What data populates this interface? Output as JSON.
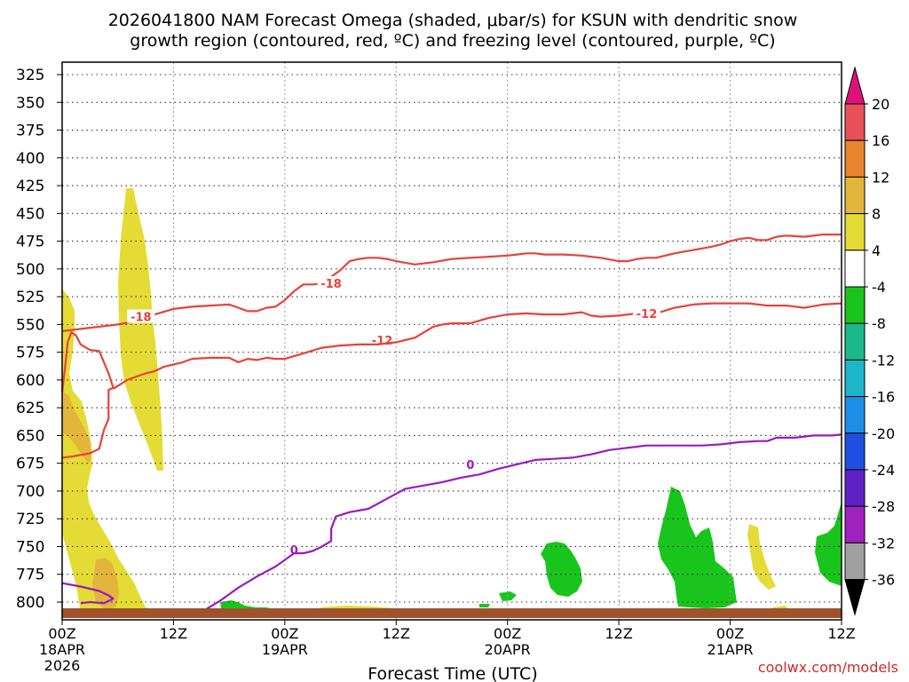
{
  "chart_data": {
    "type": "time-height cross-section",
    "title_line1": "2026041800 NAM Forecast Omega (shaded, μbar/s) for KSUN with dendritic snow",
    "title_line2": "growth region (contoured, red, ºC) and freezing level (contoured, purple, ºC)",
    "xlabel": "Forecast Time (UTC)",
    "watermark": "coolwx.com/models",
    "x_unit": "forecast hours",
    "xlim": [
      0,
      84
    ],
    "y_unit": "hPa",
    "ylim": [
      315,
      812
    ],
    "y_ticks": [
      325,
      350,
      375,
      400,
      425,
      450,
      475,
      500,
      525,
      550,
      575,
      600,
      625,
      650,
      675,
      700,
      725,
      750,
      775,
      800
    ],
    "x_ticks": [
      {
        "hour": 0,
        "label": "00Z",
        "date": "18APR",
        "year": "2026"
      },
      {
        "hour": 12,
        "label": "12Z",
        "date": "",
        "year": ""
      },
      {
        "hour": 24,
        "label": "00Z",
        "date": "19APR",
        "year": ""
      },
      {
        "hour": 36,
        "label": "12Z",
        "date": "",
        "year": ""
      },
      {
        "hour": 48,
        "label": "00Z",
        "date": "20APR",
        "year": ""
      },
      {
        "hour": 60,
        "label": "12Z",
        "date": "",
        "year": ""
      },
      {
        "hour": 72,
        "label": "00Z",
        "date": "21APR",
        "year": ""
      },
      {
        "hour": 84,
        "label": "12Z",
        "date": "",
        "year": ""
      }
    ],
    "ground_surface_hpa": 808,
    "colorbar": {
      "labels": [
        "20",
        "16",
        "12",
        "8",
        "4",
        "-4",
        "-8",
        "-12",
        "-16",
        "-20",
        "-24",
        "-28",
        "-32",
        "-36"
      ],
      "colors": [
        "#e8505a",
        "#e9842e",
        "#e4b53b",
        "#e4dc35",
        "#ffffff",
        "#19c51c",
        "#19b98a",
        "#1cb5c9",
        "#1e8fe9",
        "#1f4fe0",
        "#6020c8",
        "#a020c0",
        "#a0a0a0"
      ],
      "top_arrow_color": "#e0107a",
      "bottom_arrow_color": "#000000"
    },
    "series": [
      {
        "name": "-18 C isotherm (lower)",
        "color": "#e8413a",
        "label": "-18",
        "label_at": [
          8.5,
          543
        ],
        "points": [
          [
            0,
            556
          ],
          [
            2,
            554
          ],
          [
            4,
            552
          ],
          [
            6,
            550
          ],
          [
            8,
            547
          ],
          [
            10,
            541
          ],
          [
            12,
            536
          ],
          [
            14,
            534
          ],
          [
            16,
            533
          ],
          [
            18,
            532
          ],
          [
            19,
            535
          ],
          [
            20,
            538
          ],
          [
            21,
            538
          ],
          [
            22,
            535
          ],
          [
            23,
            534
          ],
          [
            24,
            528
          ],
          [
            25,
            520
          ],
          [
            26,
            514
          ],
          [
            27,
            514
          ],
          [
            28,
            513
          ],
          [
            29,
            507
          ],
          [
            30,
            501
          ],
          [
            31,
            493
          ],
          [
            32,
            491
          ],
          [
            33,
            490
          ],
          [
            34,
            490
          ],
          [
            35,
            491
          ],
          [
            36,
            493
          ],
          [
            38,
            496
          ],
          [
            40,
            494
          ],
          [
            42,
            491
          ],
          [
            44,
            490
          ],
          [
            46,
            489
          ],
          [
            48,
            488
          ],
          [
            49,
            487
          ],
          [
            50,
            486
          ],
          [
            51,
            486
          ],
          [
            52,
            487
          ],
          [
            54,
            487
          ],
          [
            56,
            488
          ],
          [
            58,
            490
          ],
          [
            60,
            493
          ],
          [
            61,
            493
          ],
          [
            62,
            491
          ],
          [
            63,
            490
          ],
          [
            64,
            490
          ],
          [
            66,
            486
          ],
          [
            68,
            483
          ],
          [
            70,
            480
          ],
          [
            71,
            478
          ],
          [
            72,
            475
          ],
          [
            73,
            473
          ],
          [
            74,
            472
          ],
          [
            75,
            474
          ],
          [
            76,
            474
          ],
          [
            77,
            471
          ],
          [
            78,
            470
          ],
          [
            80,
            471
          ],
          [
            82,
            469
          ],
          [
            84,
            469
          ]
        ]
      },
      {
        "name": "-18 C isotherm (upper, freezing-level side)",
        "color": "#e8413a",
        "label": "-18",
        "label_at": [
          29,
          513
        ],
        "points": []
      },
      {
        "name": "-12 C isotherm",
        "color": "#e8413a",
        "label": "-12",
        "label_at": [
          34.5,
          564
        ],
        "points": [
          [
            0,
            611
          ],
          [
            0.3,
            590
          ],
          [
            0.6,
            566
          ],
          [
            1,
            557
          ],
          [
            1.5,
            560
          ],
          [
            2,
            568
          ],
          [
            3,
            573
          ],
          [
            4,
            574
          ],
          [
            5,
            594
          ],
          [
            5.5,
            607
          ],
          [
            5,
            609
          ],
          [
            5,
            615
          ],
          [
            5,
            625
          ],
          [
            5,
            635
          ],
          [
            4.5,
            645
          ],
          [
            4,
            662
          ],
          [
            3,
            666
          ],
          [
            1,
            669
          ],
          [
            0,
            670
          ]
        ]
      },
      {
        "name": "-12 C isotherm (main)",
        "color": "#e8413a",
        "label": "-12",
        "label_at": [
          63,
          540
        ],
        "points": [
          [
            5.5,
            608
          ],
          [
            7,
            600
          ],
          [
            8,
            597
          ],
          [
            9,
            594
          ],
          [
            10,
            592
          ],
          [
            11,
            588
          ],
          [
            12,
            586
          ],
          [
            13,
            584
          ],
          [
            14,
            581
          ],
          [
            16,
            580
          ],
          [
            18,
            580
          ],
          [
            19,
            584
          ],
          [
            20,
            581
          ],
          [
            21,
            582
          ],
          [
            22,
            580
          ],
          [
            23,
            581
          ],
          [
            24,
            581
          ],
          [
            26,
            576
          ],
          [
            28,
            571
          ],
          [
            30,
            569
          ],
          [
            32,
            568
          ],
          [
            34,
            568
          ],
          [
            36,
            566
          ],
          [
            38,
            562
          ],
          [
            40,
            552
          ],
          [
            41,
            550
          ],
          [
            42,
            549
          ],
          [
            44,
            549
          ],
          [
            46,
            544
          ],
          [
            48,
            541
          ],
          [
            50,
            540
          ],
          [
            52,
            541
          ],
          [
            54,
            541
          ],
          [
            56,
            539
          ],
          [
            57,
            542
          ],
          [
            58,
            543
          ],
          [
            60,
            542
          ],
          [
            61,
            541
          ],
          [
            62,
            540
          ],
          [
            64,
            540
          ],
          [
            66,
            535
          ],
          [
            68,
            532
          ],
          [
            70,
            531
          ],
          [
            72,
            531
          ],
          [
            74,
            531
          ],
          [
            76,
            533
          ],
          [
            78,
            533
          ],
          [
            80,
            535
          ],
          [
            82,
            532
          ],
          [
            84,
            531
          ]
        ]
      },
      {
        "name": "0 C freezing level",
        "color": "#9a19c2",
        "label": "0",
        "label_at": [
          25,
          753
        ],
        "points": [
          [
            0,
            783
          ],
          [
            2,
            786
          ],
          [
            4,
            790
          ],
          [
            5,
            794
          ],
          [
            5.5,
            797
          ],
          [
            4.5,
            801
          ],
          [
            3,
            800
          ],
          [
            2,
            801
          ]
        ]
      },
      {
        "name": "0 C freezing level (main)",
        "color": "#9a19c2",
        "label": "0",
        "label_at": [
          44,
          676
        ],
        "points": [
          [
            15,
            809
          ],
          [
            17,
            799
          ],
          [
            19,
            787
          ],
          [
            21,
            777
          ],
          [
            23,
            768
          ],
          [
            24,
            762
          ],
          [
            25,
            756
          ],
          [
            26,
            756
          ],
          [
            27,
            754
          ],
          [
            28,
            750
          ],
          [
            29,
            745
          ],
          [
            29,
            734
          ],
          [
            29.5,
            723
          ],
          [
            31,
            719
          ],
          [
            33,
            716
          ],
          [
            35,
            707
          ],
          [
            37,
            698
          ],
          [
            39,
            695
          ],
          [
            41,
            692
          ],
          [
            43,
            688
          ],
          [
            45,
            685
          ],
          [
            47,
            680
          ],
          [
            49,
            676
          ],
          [
            51,
            672
          ],
          [
            53,
            671
          ],
          [
            55,
            670
          ],
          [
            57,
            667
          ],
          [
            59,
            663
          ],
          [
            61,
            661
          ],
          [
            63,
            659
          ],
          [
            65,
            659
          ],
          [
            67,
            659
          ],
          [
            69,
            659
          ],
          [
            71,
            658
          ],
          [
            73,
            656
          ],
          [
            75,
            655
          ],
          [
            76,
            655
          ],
          [
            77,
            652
          ],
          [
            79,
            652
          ],
          [
            81,
            650
          ],
          [
            83,
            650
          ],
          [
            84,
            649
          ]
        ]
      }
    ],
    "omega_shading": [
      {
        "name": "yellow 4-8 region (left wall)",
        "color": "#e4dc35",
        "value_range": [
          4,
          8
        ]
      },
      {
        "name": "yellow 4-8 column near 09Z",
        "color": "#e4dc35",
        "value_range": [
          4,
          8
        ]
      },
      {
        "name": "orange 8-12 core near 05Z",
        "color": "#e4b53b",
        "value_range": [
          8,
          12
        ]
      },
      {
        "name": "green -4 to -8 patches",
        "color": "#19c51c",
        "value_range": [
          -8,
          -4
        ]
      }
    ]
  }
}
